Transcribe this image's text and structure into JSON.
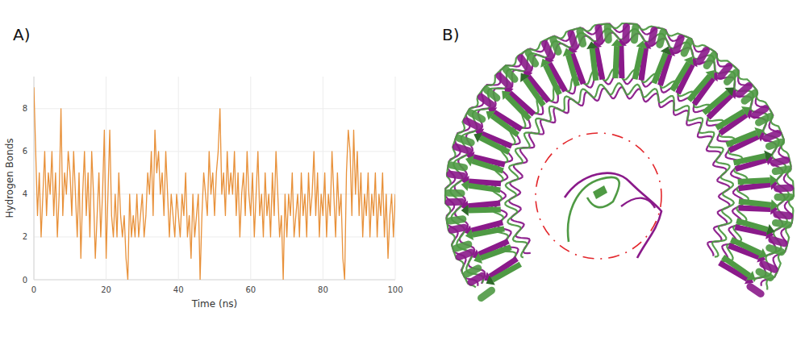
{
  "chart_data": {
    "type": "line",
    "x_label": "Time (ns)",
    "y_label": "Hydrogen Bonds",
    "color": "#e8913a",
    "grid": true,
    "xlim": [
      0,
      100
    ],
    "xticks": [
      0,
      20,
      40,
      60,
      80,
      100
    ],
    "ylim": [
      0,
      9.5
    ],
    "yticks": [
      0,
      2,
      4,
      6,
      8
    ],
    "x": [
      0,
      0.5,
      1,
      1.5,
      2,
      2.5,
      3,
      3.5,
      4,
      4.5,
      5,
      5.5,
      6,
      6.5,
      7,
      7.5,
      8,
      8.5,
      9,
      9.5,
      10,
      10.5,
      11,
      11.5,
      12,
      12.5,
      13,
      13.5,
      14,
      14.5,
      15,
      15.5,
      16,
      16.5,
      17,
      17.5,
      18,
      18.5,
      19,
      19.5,
      20,
      20.5,
      21,
      21.5,
      22,
      22.5,
      23,
      23.5,
      24,
      24.5,
      25,
      25.5,
      26,
      26.5,
      27,
      27.5,
      28,
      28.5,
      29,
      29.5,
      30,
      30.5,
      31,
      31.5,
      32,
      32.5,
      33,
      33.5,
      34,
      34.5,
      35,
      35.5,
      36,
      36.5,
      37,
      37.5,
      38,
      38.5,
      39,
      39.5,
      40,
      40.5,
      41,
      41.5,
      42,
      42.5,
      43,
      43.5,
      44,
      44.5,
      45,
      45.5,
      46,
      46.5,
      47,
      47.5,
      48,
      48.5,
      49,
      49.5,
      50,
      50.5,
      51,
      51.5,
      52,
      52.5,
      53,
      53.5,
      54,
      54.5,
      55,
      55.5,
      56,
      56.5,
      57,
      57.5,
      58,
      58.5,
      59,
      59.5,
      60,
      60.5,
      61,
      61.5,
      62,
      62.5,
      63,
      63.5,
      64,
      64.5,
      65,
      65.5,
      66,
      66.5,
      67,
      67.5,
      68,
      68.5,
      69,
      69.5,
      70,
      70.5,
      71,
      71.5,
      72,
      72.5,
      73,
      73.5,
      74,
      74.5,
      75,
      75.5,
      76,
      76.5,
      77,
      77.5,
      78,
      78.5,
      79,
      79.5,
      80,
      80.5,
      81,
      81.5,
      82,
      82.5,
      83,
      83.5,
      84,
      84.5,
      85,
      85.5,
      86,
      86.5,
      87,
      87.5,
      88,
      88.5,
      89,
      89.5,
      90,
      90.5,
      91,
      91.5,
      92,
      92.5,
      93,
      93.5,
      94,
      94.5,
      95,
      95.5,
      96,
      96.5,
      97,
      97.5,
      98,
      98.5,
      99,
      99.5,
      100
    ],
    "values": [
      9,
      6,
      3,
      5,
      2,
      4,
      6,
      3,
      5,
      4,
      6,
      3,
      5,
      2,
      4,
      8,
      3,
      5,
      4,
      6,
      5,
      3,
      6,
      4,
      2,
      5,
      1,
      4,
      6,
      3,
      5,
      2,
      6,
      4,
      1,
      3,
      5,
      2,
      4,
      7,
      1,
      4,
      7,
      3,
      2,
      4,
      2,
      5,
      3,
      2,
      3,
      1,
      0,
      4,
      2,
      3,
      2,
      4,
      2,
      3,
      4,
      2,
      3,
      5,
      4,
      6,
      3,
      7,
      5,
      6,
      4,
      5,
      3,
      6,
      4,
      2,
      4,
      3,
      2,
      4,
      3,
      2,
      4,
      3,
      5,
      2,
      3,
      1,
      4,
      2,
      3,
      4,
      0,
      3,
      5,
      4,
      3,
      6,
      4,
      5,
      3,
      5,
      6,
      8,
      4,
      5,
      3,
      6,
      4,
      5,
      4,
      6,
      3,
      5,
      2,
      4,
      5,
      3,
      6,
      4,
      3,
      5,
      2,
      4,
      6,
      3,
      4,
      2,
      5,
      3,
      4,
      2,
      5,
      3,
      6,
      4,
      2,
      3,
      0,
      4,
      2,
      4,
      3,
      5,
      2,
      3,
      4,
      2,
      5,
      3,
      4,
      2,
      5,
      3,
      4,
      6,
      3,
      5,
      2,
      4,
      3,
      5,
      2,
      4,
      3,
      6,
      4,
      2,
      5,
      3,
      4,
      1,
      0,
      5,
      7,
      6,
      3,
      7,
      4,
      6,
      3,
      5,
      2,
      4,
      3,
      5,
      2,
      4,
      3,
      5,
      2,
      4,
      3,
      5,
      2,
      4,
      1,
      3,
      4,
      2,
      4
    ]
  },
  "figure": {
    "panel_labels": [
      "A)",
      "B)"
    ]
  }
}
